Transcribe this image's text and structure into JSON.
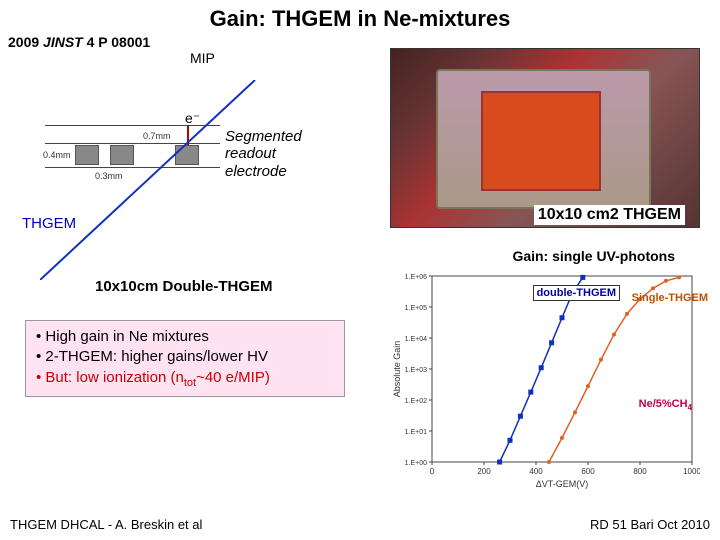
{
  "title": "Gain: THGEM in Ne-mixtures",
  "citation": {
    "year": "2009",
    "journal": "JINST",
    "ref": "4 P 08001"
  },
  "diagram": {
    "mip": "MIP",
    "e": "e⁻",
    "dim1": "0.7mm",
    "dim2": "0.4mm",
    "dim3": "0.3mm",
    "seg": "Segmented readout electrode",
    "thgem": "THGEM",
    "double": "10x10cm Double-THGEM"
  },
  "photo_caption": "10x10 cm2 THGEM",
  "bullets": {
    "b1": "• High gain in Ne mixtures",
    "b2": "• 2-THGEM: higher gains/lower HV",
    "b3_a": "• But: low ionization (n",
    "b3_sub": "tot",
    "b3_b": "~40 e/MIP)"
  },
  "chart": {
    "title": "Gain: single UV-photons",
    "ylabel": "Absolute Gain",
    "xlabel": "ΔVT-GEM(V)",
    "legend_double": "double-THGEM",
    "legend_single": "Single-THGEM",
    "legend_gas": "Ne/5%CH",
    "legend_gas_sub": "4",
    "yticks": [
      "1.E+06",
      "1.E+05",
      "1.E+04",
      "1.E+03",
      "1.E+02",
      "1.E+01",
      "1.E+00"
    ],
    "xticks": [
      "0",
      "200",
      "400",
      "600",
      "800",
      "1000"
    ],
    "series_double": {
      "color": "#1030c0",
      "points": [
        [
          260,
          1
        ],
        [
          300,
          5
        ],
        [
          340,
          30
        ],
        [
          380,
          180
        ],
        [
          420,
          1100
        ],
        [
          460,
          7000
        ],
        [
          500,
          45000
        ],
        [
          540,
          280000
        ],
        [
          580,
          900000
        ]
      ]
    },
    "series_single": {
      "color": "#e06020",
      "points": [
        [
          450,
          1
        ],
        [
          500,
          6
        ],
        [
          550,
          40
        ],
        [
          600,
          280
        ],
        [
          650,
          2000
        ],
        [
          700,
          13000
        ],
        [
          750,
          60000
        ],
        [
          800,
          180000
        ],
        [
          850,
          400000
        ],
        [
          900,
          700000
        ],
        [
          950,
          900000
        ]
      ]
    },
    "xlim": [
      0,
      1000
    ],
    "ylim_log": [
      0,
      6
    ],
    "background": "#ffffff",
    "axis_color": "#444444"
  },
  "footer": {
    "left": "THGEM DHCAL - A. Breskin et al",
    "right": "RD 51 Bari Oct 2010"
  }
}
